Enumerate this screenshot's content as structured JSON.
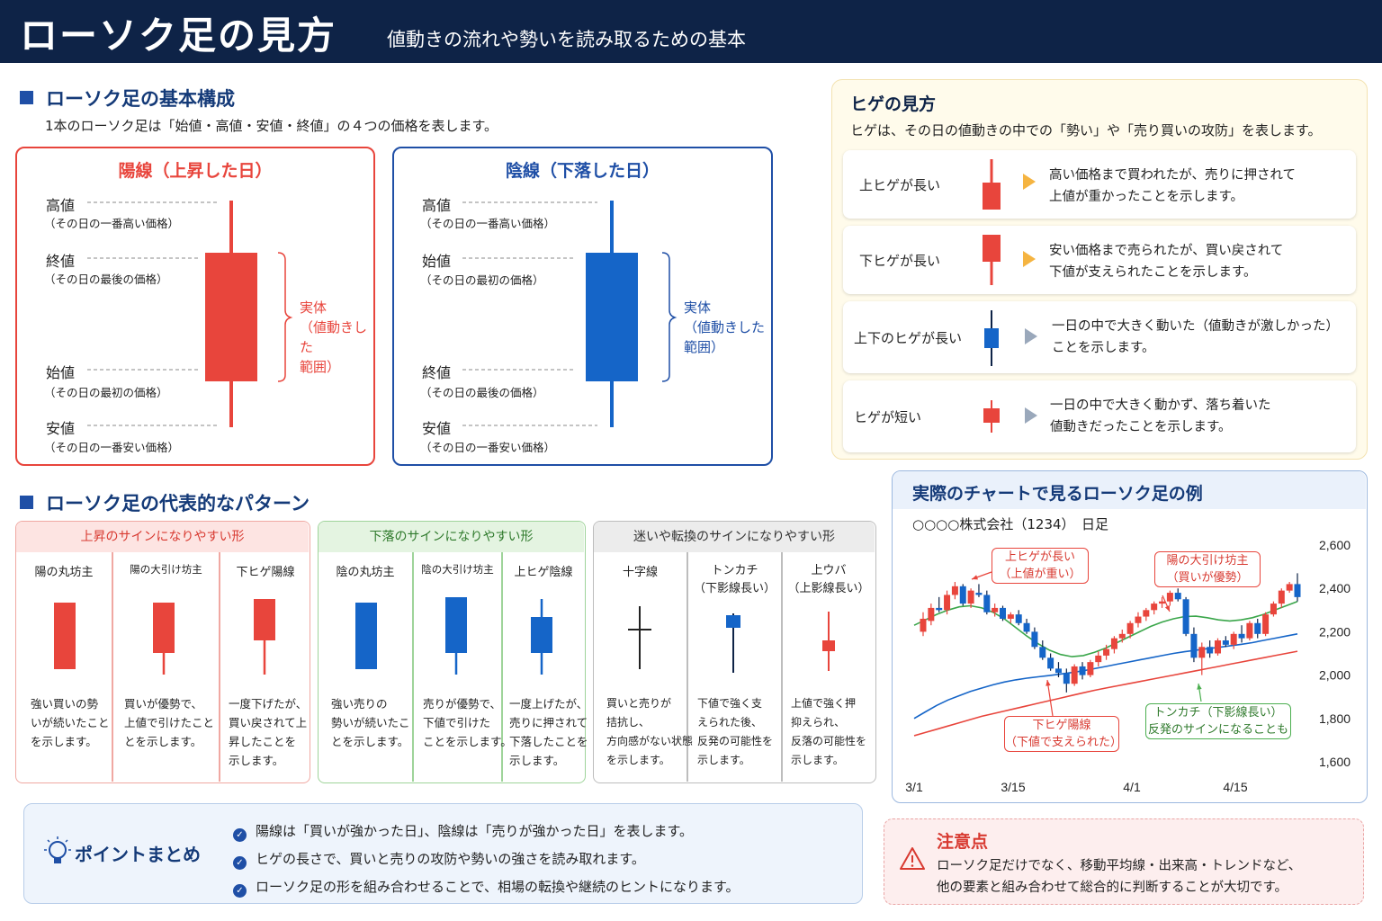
{
  "header": {
    "title": "ローソク足の見方",
    "subtitle": "値動きの流れや勢いを読み取るための基本"
  },
  "basic": {
    "title": "ローソク足の基本構成",
    "note": "1本のローソク足は「始値・高値・安値・終値」の４つの価格を表します。",
    "up": {
      "title": "陽線（上昇した日）",
      "labels": [
        {
          "name": "高値",
          "desc": "（その日の一番高い価格）"
        },
        {
          "name": "終値",
          "desc": "（その日の最後の価格）"
        },
        {
          "name": "始値",
          "desc": "（その日の最初の価格）"
        },
        {
          "name": "安値",
          "desc": "（その日の一番安い価格）"
        }
      ],
      "body_label": [
        "実体",
        "（値動きした",
        "範囲）"
      ]
    },
    "down": {
      "title": "陰線（下落した日）",
      "labels": [
        {
          "name": "高値",
          "desc": "（その日の一番高い価格）"
        },
        {
          "name": "始値",
          "desc": "（その日の最初の価格）"
        },
        {
          "name": "終値",
          "desc": "（その日の最後の価格）"
        },
        {
          "name": "安値",
          "desc": "（その日の一番安い価格）"
        }
      ],
      "body_label": [
        "実体",
        "（値動きした",
        "範囲）"
      ]
    }
  },
  "colors": {
    "up": "#e8453c",
    "down": "#1565c8",
    "navy": "#0e2347",
    "accent": "#1f4fa6"
  },
  "wicks": {
    "title": "ヒゲの見方",
    "note": "ヒゲは、その日の値動きの中での「勢い」や「売り買いの攻防」を表します。",
    "rows": [
      {
        "label": "上ヒゲが長い",
        "lines": [
          "高い価格まで買われたが、売りに押されて",
          "上値が重かったことを示します。"
        ]
      },
      {
        "label": "下ヒゲが長い",
        "lines": [
          "安い価格まで売られたが、買い戻されて",
          "下値が支えられたことを示します。"
        ]
      },
      {
        "label": "上下のヒゲが長い",
        "lines": [
          "一日の中で大きく動いた（値動きが激しかった）",
          "ことを示します。"
        ]
      },
      {
        "label": "ヒゲが短い",
        "lines": [
          "一日の中で大きく動かず、落ち着いた",
          "値動きだったことを示します。"
        ]
      }
    ]
  },
  "patterns": {
    "title": "ローソク足の代表的なパターン",
    "groups": [
      {
        "title": "上昇のサインになりやすい形",
        "items": [
          {
            "name": "陽の丸坊主",
            "lines": [
              "強い買いの勢",
              "いが続いたこと",
              "を示します。"
            ]
          },
          {
            "name": "陽の大引け坊主",
            "lines": [
              "買いが優勢で、",
              "上値で引けたこと",
              "とを示します。"
            ]
          },
          {
            "name": "下ヒゲ陽線",
            "lines": [
              "一度下げたが、",
              "買い戻されて上",
              "昇したことを",
              "示します。"
            ]
          }
        ]
      },
      {
        "title": "下落のサインになりやすい形",
        "items": [
          {
            "name": "陰の丸坊主",
            "lines": [
              "強い売りの",
              "勢いが続いたこ",
              "とを示します。"
            ]
          },
          {
            "name": "陰の大引け坊主",
            "lines": [
              "売りが優勢で、",
              "下値で引けた",
              "ことを示します。"
            ]
          },
          {
            "name": "上ヒゲ陰線",
            "lines": [
              "一度上げたが、",
              "売りに押されて",
              "下落したことを",
              "示します。"
            ]
          }
        ]
      },
      {
        "title": "迷いや転換のサインになりやすい形",
        "items": [
          {
            "name": "十字線",
            "name2": "",
            "lines": [
              "買いと売りが",
              "拮抗し、",
              "方向感がない状態",
              "を示します。"
            ]
          },
          {
            "name": "トンカチ",
            "name2": "（下影線長い）",
            "lines": [
              "下値で強く支",
              "えられた後、",
              "反発の可能性を",
              "示します。"
            ]
          },
          {
            "name": "上ウバ",
            "name2": "（上影線長い）",
            "lines": [
              "上値で強く押",
              "抑えられ、",
              "反落の可能性を",
              "示します。"
            ]
          }
        ]
      }
    ]
  },
  "chart": {
    "title": "実際のチャートで見るローソク足の例",
    "subtitle": "○○○○株式会社（1234）　日足",
    "callouts": [
      {
        "lines": [
          "上ヒゲが長い",
          "（上値が重い）"
        ]
      },
      {
        "lines": [
          "陽の大引け坊主",
          "（買いが優勢）"
        ]
      },
      {
        "lines": [
          "下ヒゲ陽線",
          "（下値で支えられた）"
        ]
      },
      {
        "lines": [
          "トンカチ（下影線長い）",
          "反発のサインになることも"
        ]
      }
    ]
  },
  "chart_data": {
    "type": "candlestick",
    "x_ticks": [
      "3/1",
      "3/15",
      "4/1",
      "4/15"
    ],
    "y_ticks": [
      2600,
      2400,
      2200,
      2000,
      1800,
      1600
    ],
    "ylim": [
      1550,
      2650
    ],
    "candles": [
      [
        2200,
        2290,
        2180,
        2260
      ],
      [
        2250,
        2330,
        2230,
        2310
      ],
      [
        2310,
        2360,
        2290,
        2300
      ],
      [
        2300,
        2390,
        2280,
        2370
      ],
      [
        2370,
        2430,
        2350,
        2410
      ],
      [
        2410,
        2420,
        2320,
        2330
      ],
      [
        2330,
        2400,
        2310,
        2390
      ],
      [
        2380,
        2420,
        2360,
        2370
      ],
      [
        2370,
        2390,
        2280,
        2290
      ],
      [
        2290,
        2330,
        2270,
        2310
      ],
      [
        2310,
        2320,
        2250,
        2260
      ],
      [
        2260,
        2290,
        2240,
        2280
      ],
      [
        2280,
        2300,
        2230,
        2240
      ],
      [
        2240,
        2260,
        2190,
        2200
      ],
      [
        2200,
        2220,
        2120,
        2130
      ],
      [
        2130,
        2160,
        2070,
        2080
      ],
      [
        2080,
        2100,
        2020,
        2030
      ],
      [
        2030,
        2060,
        1990,
        2010
      ],
      [
        2010,
        2030,
        1920,
        1960
      ],
      [
        1960,
        2050,
        1950,
        2040
      ],
      [
        2040,
        2060,
        1980,
        2000
      ],
      [
        2000,
        2070,
        1990,
        2060
      ],
      [
        2060,
        2110,
        2040,
        2090
      ],
      [
        2090,
        2140,
        2070,
        2120
      ],
      [
        2120,
        2180,
        2100,
        2170
      ],
      [
        2170,
        2210,
        2150,
        2190
      ],
      [
        2190,
        2250,
        2170,
        2240
      ],
      [
        2240,
        2290,
        2220,
        2270
      ],
      [
        2270,
        2310,
        2250,
        2300
      ],
      [
        2300,
        2340,
        2280,
        2330
      ],
      [
        2330,
        2360,
        2310,
        2340
      ],
      [
        2340,
        2390,
        2320,
        2380
      ],
      [
        2380,
        2400,
        2340,
        2350
      ],
      [
        2350,
        2360,
        2180,
        2190
      ],
      [
        2190,
        2220,
        2060,
        2080
      ],
      [
        2080,
        2150,
        2000,
        2130
      ],
      [
        2130,
        2160,
        2080,
        2100
      ],
      [
        2100,
        2170,
        2090,
        2160
      ],
      [
        2160,
        2180,
        2130,
        2140
      ],
      [
        2140,
        2200,
        2120,
        2190
      ],
      [
        2190,
        2230,
        2150,
        2170
      ],
      [
        2170,
        2250,
        2160,
        2240
      ],
      [
        2240,
        2260,
        2170,
        2190
      ],
      [
        2190,
        2290,
        2180,
        2280
      ],
      [
        2280,
        2340,
        2270,
        2330
      ],
      [
        2330,
        2400,
        2310,
        2390
      ],
      [
        2390,
        2430,
        2380,
        2420
      ],
      [
        2420,
        2470,
        2340,
        2360
      ]
    ],
    "ma_short": [
      2230,
      2255,
      2280,
      2300,
      2315,
      2320,
      2310,
      2290,
      2260,
      2220,
      2180,
      2145,
      2115,
      2095,
      2085,
      2090,
      2105,
      2125,
      2150,
      2175,
      2200,
      2225,
      2245,
      2260,
      2270,
      2272,
      2265,
      2255,
      2250,
      2255,
      2265,
      2280,
      2300,
      2320,
      2340
    ],
    "ma_long": [
      1800,
      1830,
      1860,
      1885,
      1905,
      1925,
      1940,
      1955,
      1968,
      1978,
      1986,
      1992,
      1998,
      2005,
      2012,
      2020,
      2030,
      2040,
      2050,
      2060,
      2070,
      2080,
      2090,
      2100,
      2108,
      2115,
      2122,
      2128,
      2135,
      2142,
      2150,
      2160,
      2170,
      2180,
      2190
    ],
    "ma_mid": [
      1720,
      1735,
      1750,
      1765,
      1780,
      1795,
      1810,
      1822,
      1834,
      1846,
      1858,
      1870,
      1882,
      1894,
      1906,
      1918,
      1930,
      1940,
      1950,
      1960,
      1970,
      1980,
      1990,
      2000,
      2010,
      2020,
      2030,
      2040,
      2050,
      2060,
      2070,
      2080,
      2090,
      2100,
      2110
    ]
  },
  "summary": {
    "title": "ポイントまとめ",
    "items": [
      "陽線は「買いが強かった日」、陰線は「売りが強かった日」を表します。",
      "ヒゲの長さで、買いと売りの攻防や勢いの強さを読み取れます。",
      "ローソク足の形を組み合わせることで、相場の転換や継続のヒントになります。"
    ]
  },
  "caution": {
    "title": "注意点",
    "lines": [
      "ローソク足だけでなく、移動平均線・出来高・トレンドなど、",
      "他の要素と組み合わせて総合的に判断することが大切です。"
    ]
  }
}
